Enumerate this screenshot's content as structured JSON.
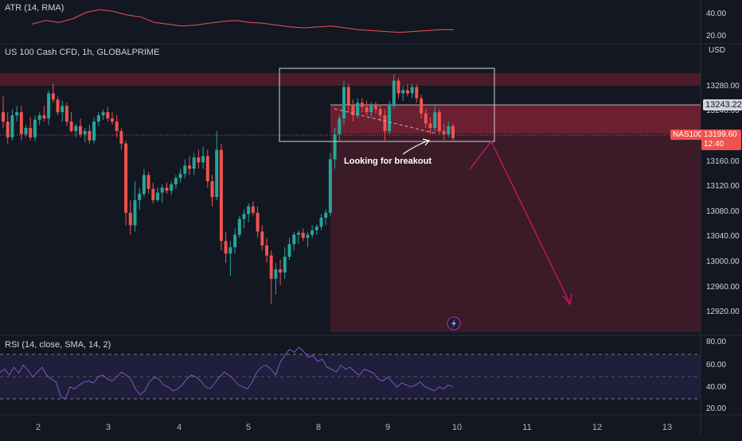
{
  "atr_pane": {
    "label": "ATR (14, RMA)",
    "ticks": [
      "40.00",
      "20.00"
    ]
  },
  "main_pane": {
    "symbol_label": "US 100 Cash CFD, 1h, GLOBALPRIME",
    "currency": "USD",
    "annotation": "Looking for breakout",
    "resistance_tag": "13243.22",
    "symbol_tag": "NAS100",
    "price_tag": "13199.60",
    "countdown": "12:40",
    "bolt_icon": "lightning-bolt-icon"
  },
  "rsi_pane": {
    "label": "RSI (14, close, SMA, 14, 2)",
    "ticks": [
      "80.00",
      "60.00",
      "40.00",
      "20.00"
    ]
  },
  "colors": {
    "background": "#131722",
    "bull": "#26a69a",
    "bear": "#ef5350",
    "zone": "#7a1f2f",
    "rsi_line": "#7e57c2",
    "arrow": "#c2185b"
  },
  "chart_data": [
    {
      "type": "line",
      "series": [
        {
          "x": [
            "1",
            "2",
            "3",
            "4",
            "5",
            "6",
            "7",
            "8",
            "9",
            "10",
            "11",
            "12",
            "13",
            "14",
            "15",
            "16",
            "17",
            "18",
            "19",
            "20",
            "21",
            "22",
            "23",
            "24",
            "25",
            "26",
            "27",
            "28",
            "29",
            "30",
            "31",
            "32"
          ],
          "values": [
            32,
            36,
            34,
            38,
            45,
            48,
            46,
            42,
            40,
            34,
            32,
            30,
            31,
            33,
            35,
            36,
            34,
            33,
            31,
            29,
            28,
            29,
            30,
            28,
            26,
            25,
            24,
            23,
            24,
            25,
            26,
            26
          ]
        }
      ],
      "ylim": [
        15,
        55
      ]
    },
    {
      "type": "candlestick",
      "x": [
        "2",
        "3",
        "4",
        "5",
        "8",
        "9",
        "10",
        "11",
        "12",
        "13",
        "14",
        "15"
      ],
      "yticks": [
        12920,
        12960,
        13000,
        13040,
        13080,
        13120,
        13160,
        13200,
        13240,
        13280
      ],
      "ylim": [
        12890,
        13330
      ],
      "series": [
        {
          "values": [
            [
              13240,
              13265,
              13215,
              13225
            ],
            [
              13225,
              13240,
              13190,
              13200
            ],
            [
              13200,
              13245,
              13195,
              13235
            ],
            [
              13235,
              13250,
              13225,
              13240
            ],
            [
              13240,
              13250,
              13195,
              13205
            ],
            [
              13205,
              13220,
              13200,
              13215
            ],
            [
              13215,
              13232,
              13195,
              13200
            ],
            [
              13200,
              13235,
              13195,
              13228
            ],
            [
              13228,
              13240,
              13220,
              13235
            ],
            [
              13235,
              13250,
              13225,
              13230
            ],
            [
              13230,
              13275,
              13220,
              13270
            ],
            [
              13270,
              13285,
              13255,
              13260
            ],
            [
              13260,
              13265,
              13235,
              13240
            ],
            [
              13240,
              13258,
              13225,
              13250
            ],
            [
              13250,
              13255,
              13218,
              13225
            ],
            [
              13225,
              13240,
              13208,
              13210
            ],
            [
              13210,
              13222,
              13200,
              13218
            ],
            [
              13218,
              13230,
              13200,
              13205
            ],
            [
              13205,
              13215,
              13192,
              13210
            ],
            [
              13210,
              13220,
              13190,
              13195
            ],
            [
              13195,
              13232,
              13190,
              13225
            ],
            [
              13225,
              13240,
              13218,
              13235
            ],
            [
              13235,
              13244,
              13228,
              13240
            ],
            [
              13240,
              13248,
              13225,
              13230
            ],
            [
              13230,
              13240,
              13220,
              13225
            ],
            [
              13225,
              13235,
              13200,
              13210
            ],
            [
              13210,
              13215,
              13180,
              13190
            ],
            [
              13190,
              13195,
              13060,
              13080
            ],
            [
              13080,
              13100,
              13045,
              13060
            ],
            [
              13060,
              13130,
              13050,
              13100
            ],
            [
              13100,
              13120,
              13085,
              13110
            ],
            [
              13110,
              13150,
              13105,
              13140
            ],
            [
              13140,
              13145,
              13110,
              13118
            ],
            [
              13118,
              13128,
              13095,
              13100
            ],
            [
              13100,
              13120,
              13098,
              13112
            ],
            [
              13112,
              13125,
              13095,
              13120
            ],
            [
              13120,
              13128,
              13110,
              13115
            ],
            [
              13115,
              13130,
              13108,
              13125
            ],
            [
              13125,
              13140,
              13118,
              13135
            ],
            [
              13135,
              13150,
              13128,
              13142
            ],
            [
              13142,
              13165,
              13135,
              13155
            ],
            [
              13155,
              13170,
              13140,
              13150
            ],
            [
              13150,
              13175,
              13140,
              13168
            ],
            [
              13168,
              13180,
              13150,
              13160
            ],
            [
              13160,
              13185,
              13150,
              13170
            ],
            [
              13170,
              13180,
              13120,
              13130
            ],
            [
              13130,
              13140,
              13090,
              13105
            ],
            [
              13105,
              13210,
              13100,
              13180
            ],
            [
              13180,
              13190,
              13020,
              13035
            ],
            [
              13035,
              13050,
              13000,
              13015
            ],
            [
              13015,
              13035,
              12980,
              13025
            ],
            [
              13025,
              13055,
              13015,
              13045
            ],
            [
              13045,
              13075,
              13040,
              13070
            ],
            [
              13070,
              13085,
              13055,
              13078
            ],
            [
              13078,
              13095,
              13065,
              13090
            ],
            [
              13090,
              13098,
              13075,
              13080
            ],
            [
              13080,
              13090,
              13040,
              13050
            ],
            [
              13050,
              13060,
              13020,
              13028
            ],
            [
              13028,
              13040,
              13000,
              13012
            ],
            [
              13012,
              13020,
              12935,
              12975
            ],
            [
              12975,
              13000,
              12950,
              12990
            ],
            [
              12990,
              13005,
              12965,
              12985
            ],
            [
              12985,
              13025,
              12975,
              13010
            ],
            [
              13010,
              13040,
              13005,
              13030
            ],
            [
              13030,
              13050,
              13020,
              13045
            ],
            [
              13045,
              13052,
              13030,
              13048
            ],
            [
              13048,
              13055,
              13035,
              13040
            ],
            [
              13040,
              13050,
              13025,
              13045
            ],
            [
              13045,
              13060,
              13040,
              13052
            ],
            [
              13052,
              13062,
              13045,
              13058
            ],
            [
              13058,
              13078,
              13052,
              13072
            ],
            [
              13072,
              13085,
              13060,
              13080
            ],
            [
              13080,
              13175,
              13075,
              13165
            ],
            [
              13165,
              13215,
              13150,
              13205
            ],
            [
              13205,
              13235,
              13195,
              13230
            ],
            [
              13230,
              13290,
              13220,
              13280
            ],
            [
              13280,
              13285,
              13240,
              13252
            ],
            [
              13252,
              13260,
              13225,
              13235
            ],
            [
              13235,
              13262,
              13230,
              13255
            ],
            [
              13255,
              13262,
              13240,
              13248
            ],
            [
              13248,
              13258,
              13235,
              13240
            ],
            [
              13240,
              13256,
              13232,
              13250
            ],
            [
              13250,
              13256,
              13238,
              13245
            ],
            [
              13245,
              13252,
              13225,
              13235
            ],
            [
              13235,
              13245,
              13195,
              13210
            ],
            [
              13210,
              13258,
              13205,
              13250
            ],
            [
              13250,
              13300,
              13245,
              13290
            ],
            [
              13290,
              13295,
              13262,
              13270
            ],
            [
              13270,
              13282,
              13258,
              13275
            ],
            [
              13275,
              13285,
              13265,
              13270
            ],
            [
              13270,
              13285,
              13262,
              13280
            ],
            [
              13280,
              13284,
              13255,
              13262
            ],
            [
              13262,
              13268,
              13230,
              13238
            ],
            [
              13238,
              13245,
              13215,
              13222
            ],
            [
              13222,
              13232,
              13205,
              13215
            ],
            [
              13215,
              13250,
              13210,
              13240
            ],
            [
              13240,
              13245,
              13205,
              13210
            ],
            [
              13210,
              13222,
              13196,
              13205
            ],
            [
              13205,
              13225,
              13200,
              13218
            ],
            [
              13218,
              13222,
              13195,
              13199
            ]
          ]
        }
      ]
    },
    {
      "type": "line",
      "ylim": [
        15,
        85
      ],
      "yticks": [
        20,
        40,
        60,
        80
      ],
      "series": [
        {
          "values": [
            55,
            58,
            52,
            60,
            54,
            62,
            57,
            50,
            55,
            60,
            52,
            48,
            45,
            30,
            28,
            40,
            38,
            42,
            45,
            46,
            44,
            50,
            52,
            48,
            46,
            50,
            55,
            52,
            48,
            38,
            32,
            36,
            45,
            50,
            48,
            42,
            40,
            36,
            38,
            42,
            48,
            52,
            50,
            46,
            40,
            38,
            44,
            50,
            55,
            52,
            48,
            42,
            40,
            38,
            45,
            55,
            60,
            62,
            58,
            52,
            65,
            72,
            78,
            75,
            80,
            76,
            70,
            72,
            66,
            68,
            60,
            58,
            55,
            62,
            58,
            60,
            55,
            52,
            58,
            56,
            54,
            48,
            46,
            50,
            45,
            40,
            44,
            42,
            40,
            42,
            45,
            40,
            38,
            36,
            40,
            38,
            42,
            40
          ]
        }
      ]
    }
  ]
}
